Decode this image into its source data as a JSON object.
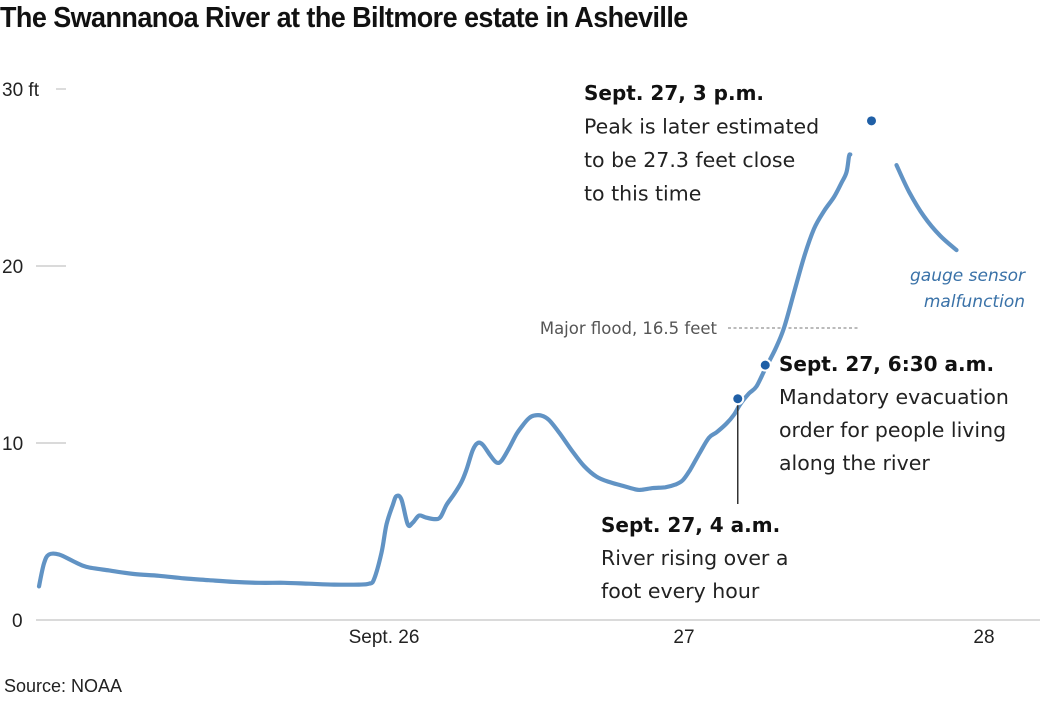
{
  "chart_data": {
    "type": "line",
    "title": "The Swannanoa River at the Biltmore estate in Asheville",
    "xlabel": "",
    "ylabel": "",
    "x_unit": "hours since Sept. 25, 00:00",
    "ylim": [
      0,
      30
    ],
    "xlim": [
      -28,
      86
    ],
    "y_ticks": [
      {
        "value": 0,
        "label": "0"
      },
      {
        "value": 10,
        "label": "10"
      },
      {
        "value": 20,
        "label": "20"
      },
      {
        "value": 30,
        "label": "30 ft"
      }
    ],
    "x_ticks": [
      {
        "value": 24,
        "label": "Sept. 26"
      },
      {
        "value": 48,
        "label": "27"
      },
      {
        "value": 72,
        "label": "28"
      }
    ],
    "grid": false,
    "colors": {
      "line": "#6193c4",
      "marker": "#1f5fa6",
      "gauge_text": "#3a72a8",
      "axis": "#bbbbbb"
    },
    "series": [
      {
        "name": "Swannanoa River gauge height (ft)",
        "segments": [
          [
            [
              -3.6,
              1.9
            ],
            [
              -3.2,
              3.2
            ],
            [
              -2.8,
              3.7
            ],
            [
              -2.0,
              3.7
            ],
            [
              -0.8,
              3.3
            ],
            [
              0.2,
              3.0
            ],
            [
              2.0,
              2.8
            ],
            [
              4.0,
              2.6
            ],
            [
              6.0,
              2.5
            ],
            [
              8.0,
              2.35
            ],
            [
              10.0,
              2.25
            ],
            [
              12.0,
              2.15
            ],
            [
              14.0,
              2.1
            ],
            [
              16.0,
              2.1
            ],
            [
              18.0,
              2.05
            ],
            [
              20.0,
              2.0
            ],
            [
              22.0,
              2.0
            ],
            [
              22.8,
              2.05
            ],
            [
              23.2,
              2.3
            ],
            [
              23.8,
              3.8
            ],
            [
              24.2,
              5.4
            ],
            [
              24.7,
              6.5
            ],
            [
              25.0,
              7.0
            ],
            [
              25.4,
              6.8
            ],
            [
              25.9,
              5.4
            ],
            [
              26.3,
              5.5
            ],
            [
              26.8,
              5.9
            ],
            [
              27.3,
              5.8
            ],
            [
              28.0,
              5.7
            ],
            [
              28.5,
              5.8
            ],
            [
              29.0,
              6.5
            ],
            [
              29.6,
              7.1
            ],
            [
              30.2,
              7.8
            ],
            [
              30.6,
              8.5
            ],
            [
              31.1,
              9.6
            ],
            [
              31.5,
              10.0
            ],
            [
              31.9,
              9.9
            ],
            [
              32.5,
              9.3
            ],
            [
              33.0,
              8.9
            ],
            [
              33.4,
              9.0
            ],
            [
              34.0,
              9.7
            ],
            [
              34.6,
              10.5
            ],
            [
              35.1,
              11.0
            ],
            [
              35.6,
              11.4
            ],
            [
              36.0,
              11.55
            ],
            [
              36.6,
              11.55
            ],
            [
              37.2,
              11.3
            ],
            [
              38.0,
              10.6
            ],
            [
              39.0,
              9.6
            ],
            [
              40.0,
              8.7
            ],
            [
              41.0,
              8.1
            ],
            [
              42.0,
              7.8
            ],
            [
              43.0,
              7.6
            ],
            [
              44.0,
              7.4
            ],
            [
              44.5,
              7.35
            ],
            [
              45.5,
              7.45
            ],
            [
              46.5,
              7.5
            ],
            [
              47.3,
              7.65
            ],
            [
              47.9,
              7.9
            ],
            [
              48.5,
              8.5
            ],
            [
              49.3,
              9.5
            ],
            [
              50.0,
              10.3
            ],
            [
              50.6,
              10.6
            ],
            [
              51.4,
              11.1
            ],
            [
              52.0,
              11.6
            ],
            [
              52.5,
              12.2
            ],
            [
              53.2,
              12.8
            ],
            [
              53.8,
              13.2
            ],
            [
              54.5,
              14.2
            ],
            [
              55.3,
              15.3
            ],
            [
              56.0,
              16.5
            ],
            [
              56.8,
              18.5
            ],
            [
              57.6,
              20.5
            ],
            [
              58.4,
              22.1
            ],
            [
              59.2,
              23.1
            ],
            [
              60.0,
              23.9
            ],
            [
              60.6,
              24.7
            ],
            [
              61.0,
              25.3
            ],
            [
              61.2,
              26.2
            ],
            [
              61.3,
              26.3
            ]
          ],
          [
            [
              65.0,
              25.7
            ],
            [
              66.0,
              24.2
            ],
            [
              67.2,
              22.8
            ],
            [
              68.5,
              21.7
            ],
            [
              69.8,
              20.9
            ]
          ]
        ]
      }
    ],
    "reference_lines": [
      {
        "label": "Major flood, 16.5 feet",
        "y": 16.5
      }
    ],
    "annotations": [
      {
        "id": "peak",
        "x": 63,
        "y": 28.2,
        "heading": "Sept. 27, 3 p.m.",
        "lines": [
          "Peak is later estimated",
          "to be 27.3 feet close",
          "to this time"
        ]
      },
      {
        "id": "evacuation",
        "x": 54.5,
        "y": 14.4,
        "heading": "Sept. 27, 6:30 a.m.",
        "lines": [
          "Mandatory evacuation",
          "order for people living",
          "along the river"
        ]
      },
      {
        "id": "rising",
        "x": 52.3,
        "y": 12.5,
        "heading": "Sept. 27, 4 a.m.",
        "lines": [
          "River rising over a",
          "foot every hour"
        ]
      }
    ],
    "notes": [
      {
        "id": "gauge",
        "lines": [
          "gauge sensor",
          "malfunction"
        ]
      }
    ],
    "source": "Source: NOAA"
  }
}
